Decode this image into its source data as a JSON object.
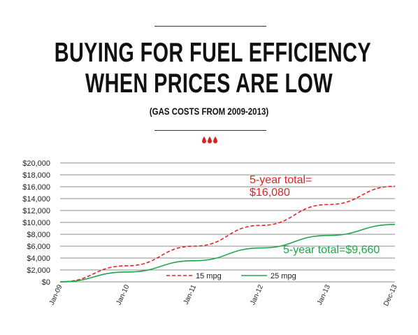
{
  "header": {
    "title_line1": "BUYING FOR FUEL EFFICIENCY",
    "title_line2": "WHEN PRICES ARE LOW",
    "subtitle": "(GAS COSTS FROM 2009-2013)"
  },
  "colors": {
    "series_15mpg": "#e32222",
    "series_25mpg": "#1ea54a",
    "drops": "#d9231f",
    "grid": "#666666"
  },
  "icons": [
    "droplet-icon",
    "droplet-icon",
    "droplet-icon"
  ],
  "annotations": {
    "red_line1": "5-year total=",
    "red_line2": "$16,080",
    "green": "5-year total=$9,660"
  },
  "chart_data": {
    "type": "line",
    "title": "",
    "xlabel": "",
    "ylabel": "",
    "x": [
      "Jan-09",
      "Jan-10",
      "Jan-11",
      "Jan-12",
      "Jan-13",
      "Dec-13"
    ],
    "ylim": [
      0,
      20000
    ],
    "yticks": [
      "$0",
      "$2,000",
      "$4,000",
      "$6,000",
      "$8,000",
      "$10,000",
      "$12,000",
      "$14,000",
      "$16,000",
      "$18,000",
      "$20,000"
    ],
    "grid": true,
    "legend_position": "bottom-center",
    "series": [
      {
        "name": "15 mpg",
        "style": "dashed",
        "values": [
          0,
          2700,
          6000,
          9500,
          13000,
          16080
        ]
      },
      {
        "name": "25 mpg",
        "style": "solid",
        "values": [
          0,
          1650,
          3550,
          5700,
          7800,
          9660
        ]
      }
    ]
  }
}
